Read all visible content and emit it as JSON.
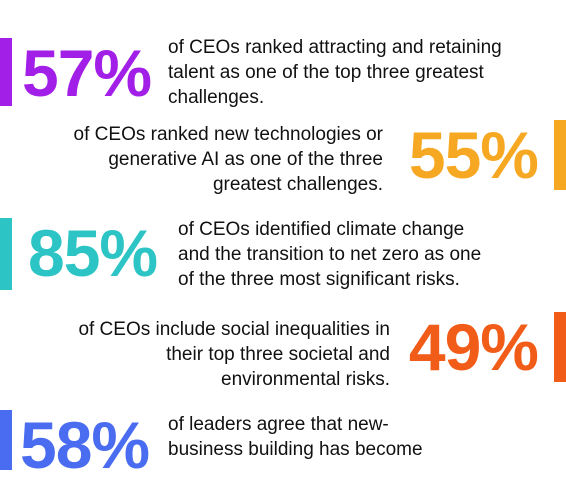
{
  "items": [
    {
      "percent": "57%",
      "color": "#a21fe8",
      "side": "left",
      "lines": [
        "of CEOs ranked attracting and retaining",
        "talent as one of the top three greatest",
        "challenges."
      ]
    },
    {
      "percent": "55%",
      "color": "#f7a823",
      "side": "right",
      "lines": [
        "of CEOs ranked new technologies or",
        "generative AI as one of the three",
        "greatest challenges."
      ]
    },
    {
      "percent": "85%",
      "color": "#2cc4c4",
      "side": "left",
      "lines": [
        "of CEOs identified climate change",
        "and the transition to net zero as one",
        "of the three most significant risks."
      ]
    },
    {
      "percent": "49%",
      "color": "#f25c19",
      "side": "right",
      "lines": [
        "of CEOs include social inequalities in",
        "their top three societal and",
        "environmental risks."
      ]
    },
    {
      "percent": "58%",
      "color": "#4a6cf0",
      "side": "left",
      "lines": [
        "of leaders agree that new-",
        "business building has become"
      ]
    }
  ]
}
